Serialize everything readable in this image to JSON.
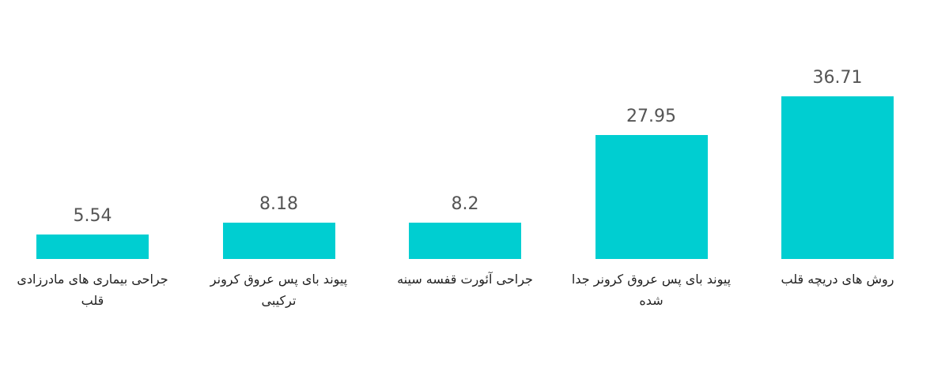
{
  "chart_data": {
    "type": "bar",
    "categories": [
      "جراحی بیماری های مادرزادی قلب",
      "پیوند بای پس عروق کرونر ترکیبی",
      "جراحی آئورت قفسه سینه",
      "پیوند بای پس عروق کرونر جدا شده",
      "روش های دریچه قلب"
    ],
    "values": [
      5.54,
      8.18,
      8.2,
      27.95,
      36.71
    ],
    "color": "#00ced1"
  }
}
